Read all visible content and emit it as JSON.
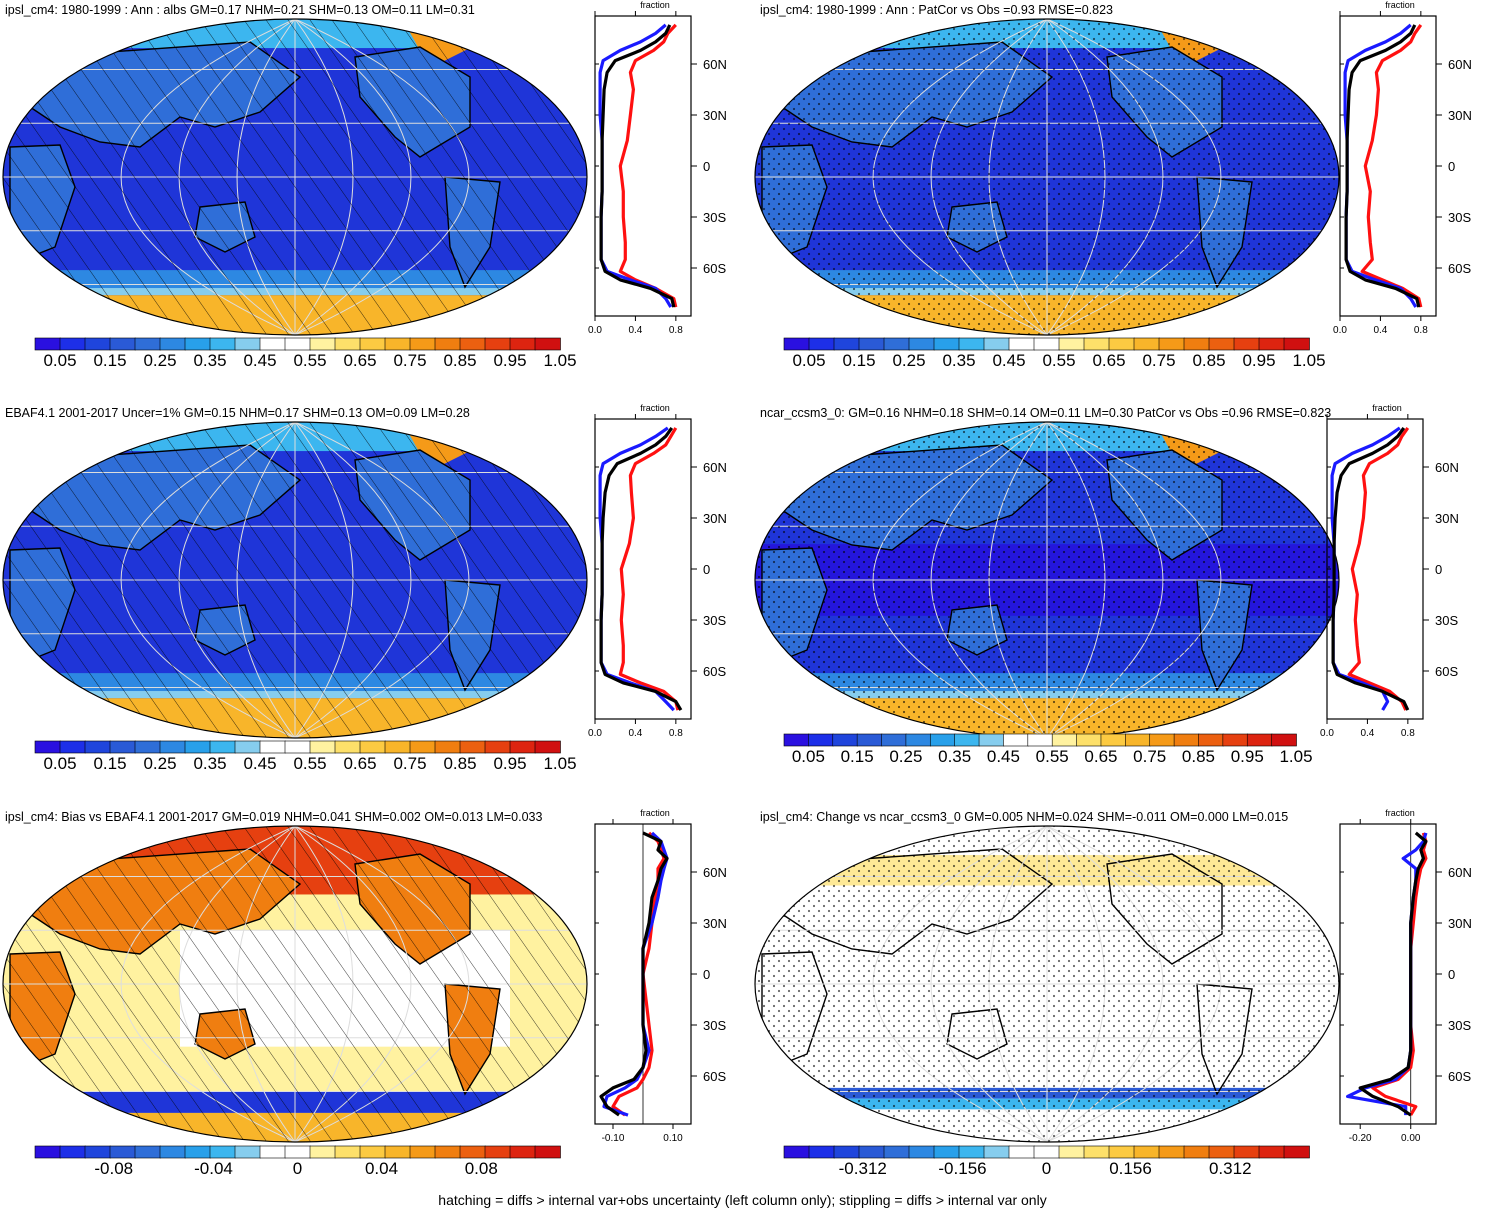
{
  "palettes": {
    "albedo": [
      "#2a10e0",
      "#1d2fe8",
      "#1f45dc",
      "#2a5ad6",
      "#2f6ed8",
      "#2d88e2",
      "#28a0ea",
      "#3cb6ef",
      "#86cdee",
      "#ffffff",
      "#ffffff",
      "#fff2a0",
      "#fde06a",
      "#fcca42",
      "#f8b52a",
      "#f59a18",
      "#f07e10",
      "#ec6010",
      "#e64010",
      "#dd2410",
      "#d01010"
    ],
    "bias": [
      "#2a10e0",
      "#1d2fe8",
      "#1f45dc",
      "#2a5ad6",
      "#2f6ed8",
      "#2d88e2",
      "#28a0ea",
      "#3cb6ef",
      "#86cdee",
      "#ffffff",
      "#ffffff",
      "#fff2a0",
      "#fde06a",
      "#fcca42",
      "#f8b52a",
      "#f59a18",
      "#f07e10",
      "#ec6010",
      "#e64010",
      "#dd2410",
      "#d01010"
    ]
  },
  "panels": [
    {
      "id": "p1",
      "title": "ipsl_cm4: 1980-1999 : Ann : albs GM=0.17 NHM=0.21 SHM=0.13 OM=0.11 LM=0.31",
      "field": "albedo",
      "overlay": "hatch",
      "colorbar_labels": [
        "0.05",
        "0.15",
        "0.25",
        "0.35",
        "0.45",
        "0.55",
        "0.65",
        "0.75",
        "0.85",
        "0.95",
        "1.05"
      ],
      "zonal": {
        "title": "fraction",
        "lat_ticks": [
          "60N",
          "30N",
          "0",
          "30S",
          "60S"
        ],
        "x_ticks": [
          "0.0",
          "0.4",
          "0.8"
        ],
        "xlim": [
          0,
          0.95
        ],
        "lat": [
          -83,
          -78,
          -72,
          -67,
          -62,
          -55,
          -45,
          -30,
          -15,
          0,
          15,
          30,
          45,
          55,
          62,
          68,
          73,
          78,
          83
        ],
        "series": [
          {
            "name": "black",
            "values": [
              0.78,
              0.76,
              0.55,
              0.25,
              0.1,
              0.06,
              0.06,
              0.06,
              0.07,
              0.07,
              0.07,
              0.08,
              0.09,
              0.12,
              0.2,
              0.45,
              0.6,
              0.7,
              0.74
            ]
          },
          {
            "name": "red",
            "values": [
              0.8,
              0.78,
              0.6,
              0.4,
              0.25,
              0.3,
              0.3,
              0.28,
              0.28,
              0.25,
              0.32,
              0.35,
              0.38,
              0.35,
              0.4,
              0.58,
              0.68,
              0.72,
              0.8
            ]
          },
          {
            "name": "blue",
            "values": [
              0.75,
              0.7,
              0.6,
              0.35,
              0.12,
              0.06,
              0.06,
              0.06,
              0.07,
              0.07,
              0.07,
              0.05,
              0.05,
              0.05,
              0.08,
              0.25,
              0.45,
              0.6,
              0.7
            ]
          }
        ]
      }
    },
    {
      "id": "p2",
      "title": "ipsl_cm4: 1980-1999 : Ann : PatCor vs Obs =0.93 RMSE=0.823",
      "field": "albedo",
      "overlay": "stipple",
      "colorbar_labels": [
        "0.05",
        "0.15",
        "0.25",
        "0.35",
        "0.45",
        "0.55",
        "0.65",
        "0.75",
        "0.85",
        "0.95",
        "1.05"
      ],
      "zonal": {
        "title": "fraction",
        "lat_ticks": [
          "60N",
          "30N",
          "0",
          "30S",
          "60S"
        ],
        "x_ticks": [
          "0.0",
          "0.4",
          "0.8"
        ],
        "xlim": [
          0,
          0.95
        ],
        "lat": [
          -83,
          -78,
          -72,
          -67,
          -62,
          -55,
          -45,
          -30,
          -15,
          0,
          15,
          30,
          45,
          55,
          62,
          68,
          73,
          78,
          83
        ],
        "series": [
          {
            "name": "black",
            "values": [
              0.78,
              0.76,
              0.55,
              0.25,
              0.1,
              0.06,
              0.06,
              0.06,
              0.07,
              0.07,
              0.07,
              0.08,
              0.09,
              0.12,
              0.2,
              0.45,
              0.6,
              0.7,
              0.74
            ]
          },
          {
            "name": "red",
            "values": [
              0.8,
              0.78,
              0.62,
              0.42,
              0.22,
              0.32,
              0.3,
              0.28,
              0.3,
              0.25,
              0.32,
              0.36,
              0.38,
              0.36,
              0.42,
              0.6,
              0.7,
              0.74,
              0.8
            ]
          },
          {
            "name": "blue",
            "values": [
              0.75,
              0.7,
              0.6,
              0.35,
              0.12,
              0.06,
              0.06,
              0.06,
              0.07,
              0.07,
              0.07,
              0.05,
              0.05,
              0.05,
              0.08,
              0.25,
              0.45,
              0.6,
              0.7
            ]
          }
        ]
      }
    },
    {
      "id": "p3",
      "title": "EBAF4.1 2001-2017 Uncer=1% GM=0.15 NHM=0.17 SHM=0.13 OM=0.09 LM=0.28",
      "field": "albedo",
      "overlay": "hatch",
      "colorbar_labels": [
        "0.05",
        "0.15",
        "0.25",
        "0.35",
        "0.45",
        "0.55",
        "0.65",
        "0.75",
        "0.85",
        "0.95",
        "1.05"
      ],
      "zonal": {
        "title": "fraction",
        "lat_ticks": [
          "60N",
          "30N",
          "0",
          "30S",
          "60S"
        ],
        "x_ticks": [
          "0.0",
          "0.4",
          "0.8"
        ],
        "xlim": [
          0,
          0.95
        ],
        "lat": [
          -83,
          -78,
          -72,
          -67,
          -62,
          -55,
          -45,
          -30,
          -15,
          0,
          15,
          30,
          45,
          55,
          62,
          68,
          73,
          78,
          83
        ],
        "series": [
          {
            "name": "black",
            "values": [
              0.85,
              0.8,
              0.6,
              0.28,
              0.1,
              0.06,
              0.06,
              0.06,
              0.07,
              0.07,
              0.07,
              0.08,
              0.1,
              0.14,
              0.22,
              0.45,
              0.6,
              0.7,
              0.76
            ]
          },
          {
            "name": "red",
            "values": [
              0.82,
              0.8,
              0.68,
              0.45,
              0.25,
              0.28,
              0.28,
              0.26,
              0.28,
              0.26,
              0.34,
              0.38,
              0.36,
              0.35,
              0.4,
              0.58,
              0.7,
              0.75,
              0.8
            ]
          },
          {
            "name": "blue",
            "values": [
              0.78,
              0.7,
              0.6,
              0.35,
              0.12,
              0.06,
              0.06,
              0.06,
              0.07,
              0.07,
              0.07,
              0.05,
              0.05,
              0.05,
              0.08,
              0.25,
              0.45,
              0.6,
              0.72
            ]
          }
        ]
      }
    },
    {
      "id": "p4",
      "title": "ncar_ccsm3_0: GM=0.16 NHM=0.18 SHM=0.14 OM=0.11 LM=0.30 PatCor vs Obs =0.96 RMSE=0.823",
      "field": "albedo",
      "overlay": "stipple",
      "colorbar_labels": [
        "0.05",
        "0.15",
        "0.25",
        "0.35",
        "0.45",
        "0.55",
        "0.65",
        "0.75",
        "0.85",
        "0.95",
        "1.05"
      ],
      "zonal": {
        "title": "fraction",
        "lat_ticks": [
          "60N",
          "30N",
          "0",
          "30S",
          "60S"
        ],
        "x_ticks": [
          "0.0",
          "0.4",
          "0.8"
        ],
        "xlim": [
          0,
          0.95
        ],
        "lat": [
          -83,
          -78,
          -72,
          -67,
          -62,
          -55,
          -45,
          -30,
          -15,
          0,
          15,
          30,
          45,
          55,
          62,
          68,
          73,
          78,
          83
        ],
        "series": [
          {
            "name": "black",
            "values": [
              0.8,
              0.76,
              0.55,
              0.28,
              0.1,
              0.06,
              0.06,
              0.06,
              0.07,
              0.07,
              0.07,
              0.08,
              0.1,
              0.14,
              0.22,
              0.45,
              0.6,
              0.7,
              0.76
            ]
          },
          {
            "name": "red",
            "values": [
              0.78,
              0.74,
              0.62,
              0.42,
              0.22,
              0.32,
              0.3,
              0.28,
              0.3,
              0.25,
              0.32,
              0.36,
              0.38,
              0.36,
              0.42,
              0.6,
              0.7,
              0.74,
              0.8
            ]
          },
          {
            "name": "blue",
            "values": [
              0.55,
              0.6,
              0.55,
              0.35,
              0.12,
              0.06,
              0.06,
              0.06,
              0.07,
              0.07,
              0.07,
              0.05,
              0.05,
              0.05,
              0.08,
              0.25,
              0.45,
              0.6,
              0.72
            ]
          }
        ]
      }
    },
    {
      "id": "p5",
      "title": "ipsl_cm4: Bias vs EBAF4.1 2001-2017 GM=0.019 NHM=0.041 SHM=0.002 OM=0.013 LM=0.033",
      "field": "bias",
      "overlay": "hatch",
      "colorbar_labels": [
        "-0.08",
        "-0.04",
        "0",
        "0.04",
        "0.08"
      ],
      "zonal": {
        "title": "fraction",
        "lat_ticks": [
          "60N",
          "30N",
          "0",
          "30S",
          "60S"
        ],
        "x_ticks": [
          "-0.10",
          "0.10"
        ],
        "xlim": [
          -0.16,
          0.16
        ],
        "lat": [
          -83,
          -78,
          -72,
          -67,
          -62,
          -55,
          -45,
          -30,
          -15,
          0,
          15,
          30,
          45,
          55,
          62,
          68,
          73,
          78,
          83
        ],
        "series": [
          {
            "name": "black",
            "values": [
              -0.08,
              -0.12,
              -0.14,
              -0.1,
              -0.03,
              0.0,
              0.01,
              0.0,
              0.0,
              0.0,
              0.0,
              0.02,
              0.03,
              0.05,
              0.06,
              0.08,
              0.05,
              0.06,
              0.0
            ]
          },
          {
            "name": "red",
            "values": [
              -0.06,
              -0.1,
              -0.08,
              -0.02,
              0.0,
              0.02,
              0.03,
              0.02,
              0.01,
              0.0,
              0.02,
              0.03,
              0.04,
              0.05,
              0.05,
              0.07,
              0.06,
              0.05,
              0.02
            ]
          },
          {
            "name": "blue",
            "values": [
              -0.05,
              -0.13,
              -0.12,
              -0.06,
              -0.02,
              0.0,
              0.02,
              0.0,
              0.0,
              0.0,
              0.0,
              0.03,
              0.05,
              0.06,
              0.07,
              0.08,
              0.07,
              0.06,
              0.03
            ]
          }
        ]
      }
    },
    {
      "id": "p6",
      "title": "ipsl_cm4: Change vs ncar_ccsm3_0 GM=0.005 NHM=0.024 SHM=-0.011 OM=0.000 LM=0.015",
      "field": "change",
      "overlay": "stipple",
      "colorbar_labels": [
        "-0.312",
        "-0.156",
        "0",
        "0.156",
        "0.312"
      ],
      "zonal": {
        "title": "fraction",
        "lat_ticks": [
          "60N",
          "30N",
          "0",
          "30S",
          "60S"
        ],
        "x_ticks": [
          "-0.20",
          "0.00"
        ],
        "xlim": [
          -0.28,
          0.1
        ],
        "lat": [
          -83,
          -78,
          -72,
          -67,
          -62,
          -55,
          -45,
          -30,
          -15,
          0,
          15,
          30,
          45,
          55,
          62,
          68,
          73,
          78,
          83
        ],
        "series": [
          {
            "name": "black",
            "values": [
              0.0,
              -0.05,
              -0.15,
              -0.2,
              -0.08,
              -0.01,
              0.0,
              0.0,
              0.0,
              0.0,
              0.0,
              0.0,
              0.01,
              0.02,
              0.03,
              0.05,
              0.04,
              0.06,
              0.02
            ]
          },
          {
            "name": "red",
            "values": [
              0.0,
              0.02,
              -0.1,
              -0.15,
              -0.05,
              0.0,
              0.01,
              0.0,
              0.0,
              0.0,
              0.0,
              0.01,
              0.02,
              0.03,
              0.04,
              0.06,
              0.05,
              0.06,
              0.05
            ]
          },
          {
            "name": "blue",
            "values": [
              -0.02,
              -0.02,
              -0.25,
              -0.18,
              -0.06,
              -0.01,
              0.0,
              0.0,
              0.0,
              0.0,
              0.0,
              0.0,
              0.01,
              0.02,
              0.02,
              -0.03,
              0.02,
              0.05,
              0.06
            ]
          }
        ]
      }
    }
  ],
  "footer": "hatching = diffs > internal var+obs uncertainty (left column only); stippling = diffs > internal var only"
}
